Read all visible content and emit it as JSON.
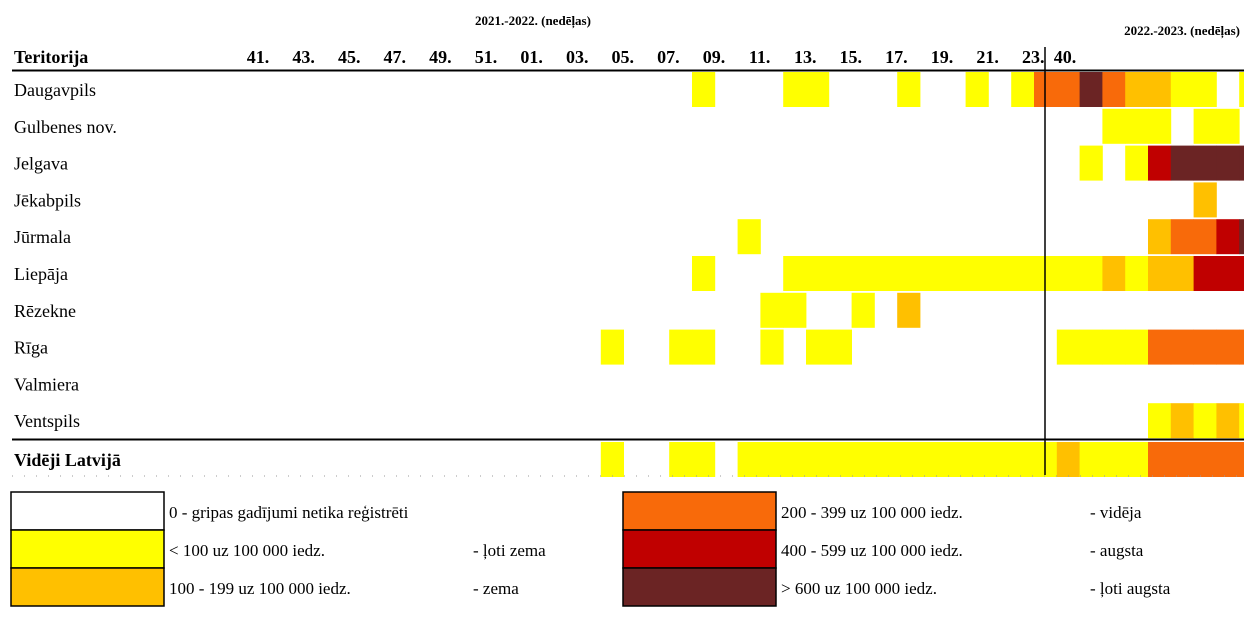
{
  "chart_data": {
    "type": "heatmap",
    "season_header_1": "2021.-2022. (nedēļas)",
    "season_header_2": "2022.-2023. (nedēļas)",
    "row_header": "Teritorija",
    "week_labels": [
      "41.",
      "43.",
      "45.",
      "47.",
      "49.",
      "51.",
      "01.",
      "03.",
      "05.",
      "07.",
      "09.",
      "11.",
      "13.",
      "15.",
      "17.",
      "19.",
      "21.",
      "23."
    ],
    "week_label_extra": "40.",
    "level_colors": [
      "#ffffff",
      "#ffff00",
      "#ffc000",
      "#f86a0a",
      "#c00000",
      "#6b2424"
    ],
    "rows": [
      {
        "name": "Daugavpils",
        "bold": false,
        "cells": [
          0,
          0,
          0,
          0,
          0,
          0,
          0,
          0,
          0,
          0,
          0,
          0,
          0,
          0,
          0,
          0,
          0,
          0,
          0,
          0,
          1,
          0,
          0,
          0,
          1,
          1,
          0,
          0,
          0,
          1,
          0,
          0,
          1,
          0,
          1,
          3,
          3,
          5,
          3,
          2,
          2,
          1,
          1,
          0,
          1,
          0,
          0,
          0,
          0,
          0,
          0,
          0,
          0,
          0
        ]
      },
      {
        "name": "Gulbenes nov.",
        "bold": false,
        "cells": [
          0,
          0,
          0,
          0,
          0,
          0,
          0,
          0,
          0,
          0,
          0,
          0,
          0,
          0,
          0,
          0,
          0,
          0,
          0,
          0,
          0,
          0,
          0,
          0,
          0,
          0,
          0,
          0,
          0,
          0,
          0,
          0,
          0,
          0,
          0,
          0,
          0,
          0,
          1,
          1,
          1,
          0,
          1,
          1,
          0,
          0,
          0,
          0,
          0,
          0,
          0,
          0,
          0,
          0
        ]
      },
      {
        "name": "Jelgava",
        "bold": false,
        "cells": [
          0,
          0,
          0,
          0,
          0,
          0,
          0,
          0,
          0,
          0,
          0,
          0,
          0,
          0,
          0,
          0,
          0,
          0,
          0,
          0,
          0,
          0,
          0,
          0,
          0,
          0,
          0,
          0,
          0,
          0,
          0,
          0,
          0,
          0,
          0,
          0,
          0,
          1,
          0,
          1,
          4,
          5,
          5,
          5,
          5,
          4,
          0,
          0,
          0,
          1,
          1,
          1,
          0,
          0
        ]
      },
      {
        "name": "Jēkabpils",
        "bold": false,
        "cells": [
          0,
          0,
          0,
          0,
          0,
          0,
          0,
          0,
          0,
          0,
          0,
          0,
          0,
          0,
          0,
          0,
          0,
          0,
          0,
          0,
          0,
          0,
          0,
          0,
          0,
          0,
          0,
          0,
          0,
          0,
          0,
          0,
          0,
          0,
          0,
          0,
          0,
          0,
          0,
          0,
          0,
          0,
          2,
          0,
          0,
          0,
          0,
          0,
          0,
          0,
          0,
          0,
          0,
          0
        ]
      },
      {
        "name": "Jūrmala",
        "bold": false,
        "cells": [
          0,
          0,
          0,
          0,
          0,
          0,
          0,
          0,
          0,
          0,
          0,
          0,
          0,
          0,
          0,
          0,
          0,
          0,
          0,
          0,
          0,
          0,
          1,
          0,
          0,
          0,
          0,
          0,
          0,
          0,
          0,
          0,
          0,
          0,
          0,
          0,
          0,
          0,
          0,
          0,
          2,
          3,
          3,
          4,
          5,
          3,
          2,
          0,
          0,
          0,
          0,
          0,
          0,
          0
        ]
      },
      {
        "name": "Liepāja",
        "bold": false,
        "cells": [
          0,
          0,
          0,
          0,
          0,
          0,
          0,
          0,
          0,
          0,
          0,
          0,
          0,
          0,
          0,
          0,
          0,
          0,
          0,
          0,
          1,
          0,
          0,
          0,
          1,
          1,
          1,
          1,
          1,
          1,
          1,
          1,
          1,
          1,
          1,
          1,
          1,
          1,
          2,
          1,
          2,
          2,
          4,
          4,
          4,
          3,
          1,
          1,
          0,
          0,
          0,
          0,
          0,
          0
        ]
      },
      {
        "name": "Rēzekne",
        "bold": false,
        "cells": [
          0,
          0,
          0,
          0,
          0,
          0,
          0,
          0,
          0,
          0,
          0,
          0,
          0,
          0,
          0,
          0,
          0,
          0,
          0,
          0,
          0,
          0,
          0,
          1,
          1,
          0,
          0,
          1,
          0,
          2,
          0,
          0,
          0,
          0,
          0,
          0,
          0,
          0,
          0,
          0,
          0,
          0,
          0,
          0,
          0,
          0,
          0,
          0,
          0,
          0,
          0,
          0,
          0,
          0
        ]
      },
      {
        "name": "Rīga",
        "bold": false,
        "cells": [
          0,
          0,
          0,
          0,
          0,
          0,
          0,
          0,
          0,
          0,
          0,
          0,
          0,
          0,
          0,
          0,
          1,
          0,
          0,
          1,
          1,
          0,
          0,
          1,
          0,
          1,
          1,
          0,
          0,
          0,
          0,
          0,
          0,
          0,
          0,
          0,
          1,
          1,
          1,
          1,
          3,
          3,
          3,
          3,
          3,
          2,
          1,
          1,
          0,
          0,
          0,
          0,
          0,
          0
        ]
      },
      {
        "name": "Valmiera",
        "bold": false,
        "cells": [
          0,
          0,
          0,
          0,
          0,
          0,
          0,
          0,
          0,
          0,
          0,
          0,
          0,
          0,
          0,
          0,
          0,
          0,
          0,
          0,
          0,
          0,
          0,
          0,
          0,
          0,
          0,
          0,
          0,
          0,
          0,
          0,
          0,
          0,
          0,
          0,
          0,
          0,
          0,
          0,
          0,
          0,
          0,
          0,
          0,
          0,
          0,
          0,
          0,
          0,
          0,
          0,
          0,
          0
        ]
      },
      {
        "name": "Ventspils",
        "bold": false,
        "cells": [
          0,
          0,
          0,
          0,
          0,
          0,
          0,
          0,
          0,
          0,
          0,
          0,
          0,
          0,
          0,
          0,
          0,
          0,
          0,
          0,
          0,
          0,
          0,
          0,
          0,
          0,
          0,
          0,
          0,
          0,
          0,
          0,
          0,
          0,
          0,
          0,
          0,
          0,
          0,
          0,
          1,
          2,
          1,
          2,
          1,
          0,
          1,
          0,
          0,
          0,
          0,
          0,
          0,
          0
        ]
      },
      {
        "name": "Vidēji Latvijā",
        "bold": true,
        "cells": [
          0,
          0,
          0,
          0,
          0,
          0,
          0,
          0,
          0,
          0,
          0,
          0,
          0,
          0,
          0,
          0,
          1,
          0,
          0,
          1,
          1,
          0,
          1,
          1,
          1,
          1,
          1,
          1,
          1,
          1,
          1,
          1,
          1,
          1,
          1,
          1,
          2,
          1,
          1,
          1,
          3,
          3,
          3,
          3,
          3,
          2,
          1,
          1,
          1,
          1,
          1,
          1,
          1,
          1
        ]
      }
    ],
    "legend": [
      {
        "level": 0,
        "range": "0 - gripas gadījumi netika reģistrēti",
        "desc": ""
      },
      {
        "level": 1,
        "range": "< 100 uz 100 000 iedz.",
        "desc": "- ļoti zema"
      },
      {
        "level": 2,
        "range": "100 - 199 uz 100 000 iedz.",
        "desc": "- zema"
      },
      {
        "level": 3,
        "range": "200 - 399 uz 100 000 iedz.",
        "desc": "- vidēja"
      },
      {
        "level": 4,
        "range": "400 - 599 uz 100 000 iedz.",
        "desc": "- augsta"
      },
      {
        "level": 5,
        "range": "> 600 uz 100 000 iedz.",
        "desc": "- ļoti augsta"
      }
    ]
  }
}
